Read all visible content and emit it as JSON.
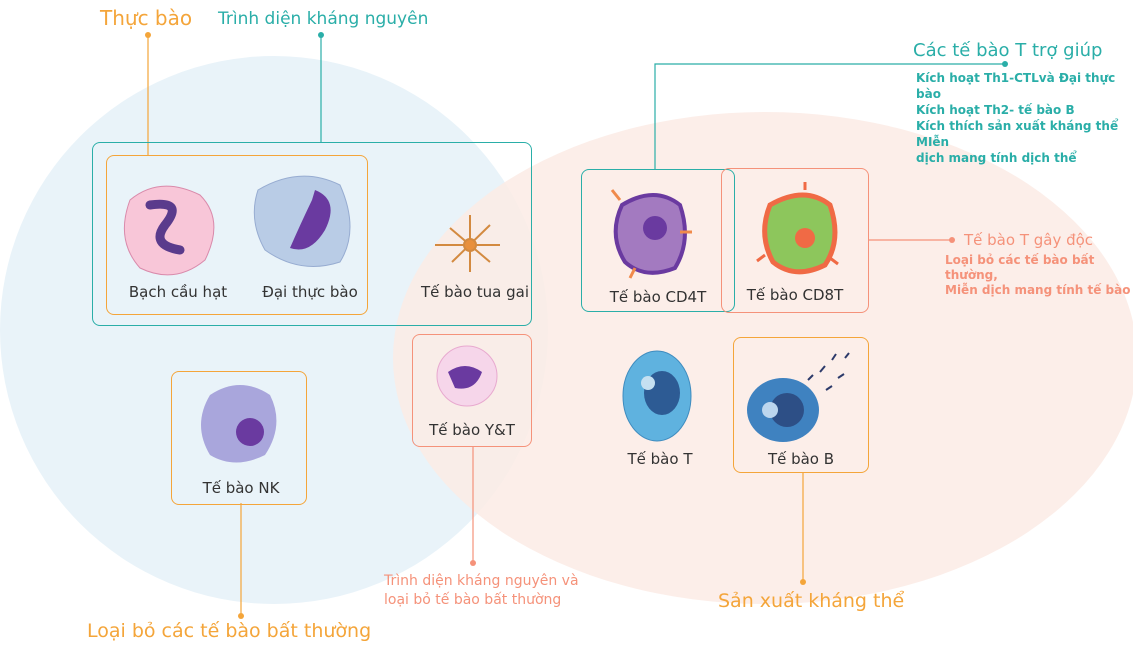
{
  "colors": {
    "phagocytosis": "#f4a53a",
    "antigen": "#2aaea8",
    "salmon": "#f5927a",
    "left_circle": "#e9f3f9",
    "right_circle": "#fdece7"
  },
  "headings": {
    "phagocytosis": "Thực bào",
    "antigen_presentation": "Trình diện kháng nguyên",
    "helper_t": "Các tế bào T trợ giúp",
    "helper_t_desc": [
      "Kích hoạt Th1-CTLvà Đại thực bào",
      "Kích hoạt Th2- tế bào B",
      "Kích thích sản xuất kháng thể MIễn",
      "dịch mang tính dịch thể"
    ],
    "cytotoxic_t": "Tế bào T gây độc",
    "cytotoxic_t_desc": [
      "Loại bỏ các tế bào bất thường,",
      "Miễn dịch mang tính tế bào"
    ],
    "eliminate_abnormal": "Loại bỏ các tế bào bất thường",
    "antigen_and_eliminate": [
      "Trình diện kháng nguyên và",
      "loại bỏ tế bào bất thường"
    ],
    "antibody_production": "Sản xuất kháng thể"
  },
  "cells": {
    "granulocyte": "Bạch cầu hạt",
    "macrophage": "Đại thực bào",
    "dendritic": "Tế bào tua gai",
    "nk": "Tế bào NK",
    "yt": "Tế bào Y&T",
    "cd4t": "Tế bào CD4T",
    "cd8t": "Tế bào CD8T",
    "t": "Tế bào T",
    "b": "Tế bào B"
  }
}
